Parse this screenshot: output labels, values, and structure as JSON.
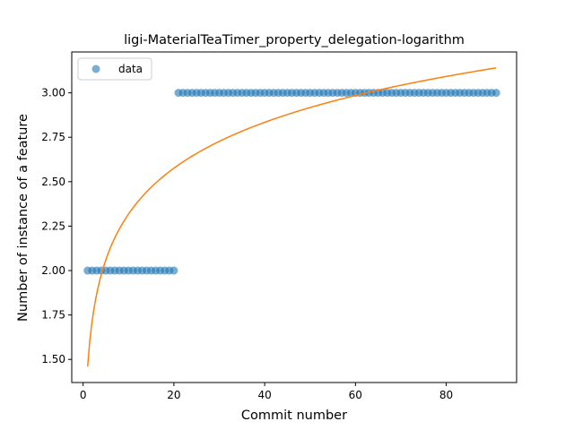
{
  "chart_data": {
    "type": "scatter",
    "title": "ligi-MaterialTeaTimer_property_delegation-logarithm",
    "xlabel": "Commit number",
    "ylabel": "Number of instance of a feature",
    "xlim": [
      -2.5,
      95.5
    ],
    "ylim": [
      1.37,
      3.23
    ],
    "xticks": [
      0,
      20,
      40,
      60,
      80
    ],
    "xtick_labels": [
      "0",
      "20",
      "40",
      "60",
      "80"
    ],
    "yticks": [
      1.5,
      1.75,
      2.0,
      2.25,
      2.5,
      2.75,
      3.0
    ],
    "ytick_labels": [
      "1.50",
      "1.75",
      "2.00",
      "2.25",
      "2.50",
      "2.75",
      "3.00"
    ],
    "grid": false,
    "legend": {
      "position": "top-left",
      "entries": [
        "data"
      ]
    },
    "series": [
      {
        "name": "data",
        "kind": "scatter",
        "color": "#1f77b4",
        "alpha": 0.6,
        "x": [
          1,
          2,
          3,
          4,
          5,
          6,
          7,
          8,
          9,
          10,
          11,
          12,
          13,
          14,
          15,
          16,
          17,
          18,
          19,
          20,
          21,
          22,
          23,
          24,
          25,
          26,
          27,
          28,
          29,
          30,
          31,
          32,
          33,
          34,
          35,
          36,
          37,
          38,
          39,
          40,
          41,
          42,
          43,
          44,
          45,
          46,
          47,
          48,
          49,
          50,
          51,
          52,
          53,
          54,
          55,
          56,
          57,
          58,
          59,
          60,
          61,
          62,
          63,
          64,
          65,
          66,
          67,
          68,
          69,
          70,
          71,
          72,
          73,
          74,
          75,
          76,
          77,
          78,
          79,
          80,
          81,
          82,
          83,
          84,
          85,
          86,
          87,
          88,
          89,
          90,
          91
        ],
        "y": [
          2,
          2,
          2,
          2,
          2,
          2,
          2,
          2,
          2,
          2,
          2,
          2,
          2,
          2,
          2,
          2,
          2,
          2,
          2,
          2,
          3,
          3,
          3,
          3,
          3,
          3,
          3,
          3,
          3,
          3,
          3,
          3,
          3,
          3,
          3,
          3,
          3,
          3,
          3,
          3,
          3,
          3,
          3,
          3,
          3,
          3,
          3,
          3,
          3,
          3,
          3,
          3,
          3,
          3,
          3,
          3,
          3,
          3,
          3,
          3,
          3,
          3,
          3,
          3,
          3,
          3,
          3,
          3,
          3,
          3,
          3,
          3,
          3,
          3,
          3,
          3,
          3,
          3,
          3,
          3,
          3,
          3,
          3,
          3,
          3,
          3,
          3,
          3,
          3,
          3,
          3
        ]
      },
      {
        "name": "",
        "kind": "line",
        "color": "#ff7f0e",
        "model": {
          "a": 1.46,
          "b": 0.3725
        }
      }
    ]
  }
}
